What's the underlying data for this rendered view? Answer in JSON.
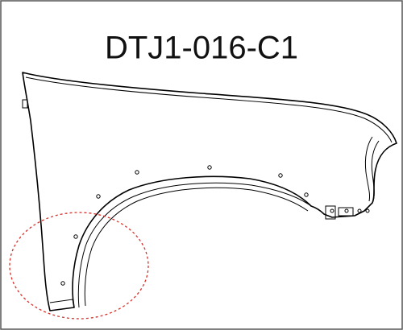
{
  "title": "DTJ1-016-C1"
}
